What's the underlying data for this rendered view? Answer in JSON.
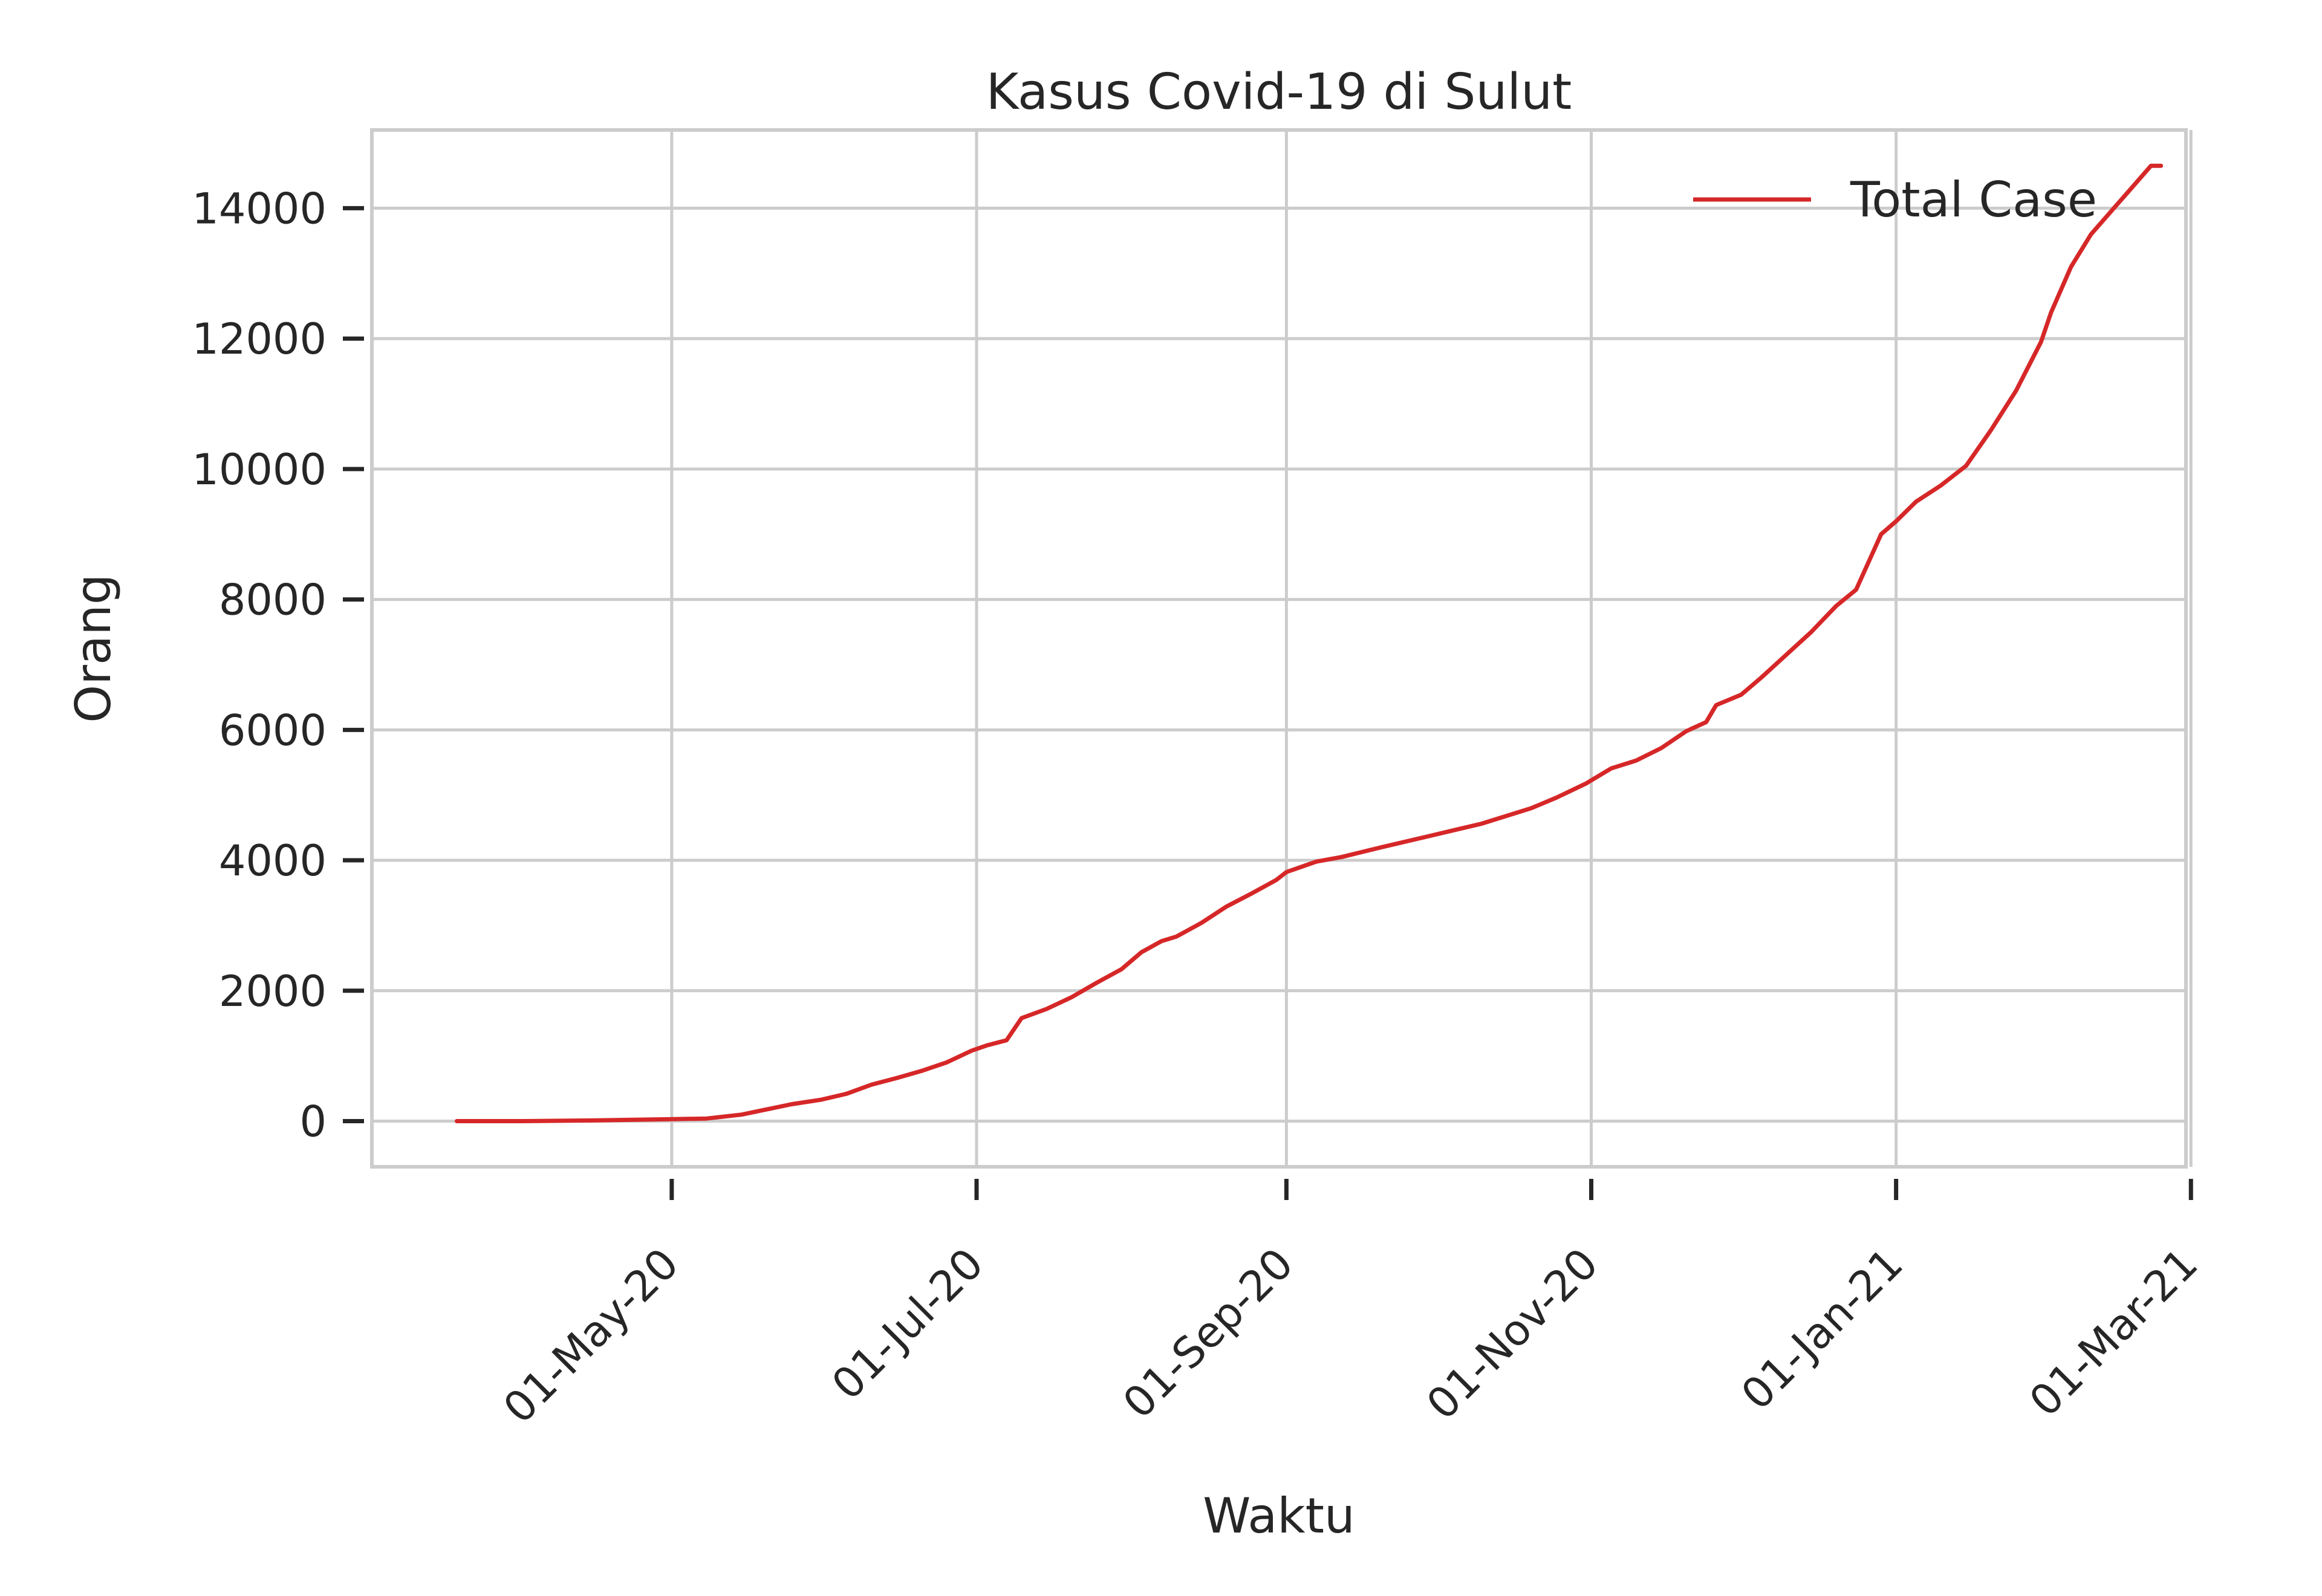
{
  "chart_data": {
    "type": "line",
    "title": "Kasus Covid-19 di Sulut",
    "xlabel": "Waktu",
    "ylabel": "Orang",
    "xlim": [
      "2020-03-02",
      "2021-02-28"
    ],
    "ylim": [
      -700,
      15200
    ],
    "x_ticks": [
      "2020-05-01",
      "2020-07-01",
      "2020-09-01",
      "2020-11-01",
      "2021-01-01",
      "2021-03-01"
    ],
    "x_tick_labels": [
      "01-May-20",
      "01-Jul-20",
      "01-Sep-20",
      "01-Nov-20",
      "01-Jan-21",
      "01-Mar-21"
    ],
    "y_ticks": [
      0,
      2000,
      4000,
      6000,
      8000,
      10000,
      12000,
      14000
    ],
    "y_tick_labels": [
      "0",
      "2000",
      "4000",
      "6000",
      "8000",
      "10000",
      "12000",
      "14000"
    ],
    "grid": true,
    "legend_position": "upper-right",
    "series": [
      {
        "name": "Total Case",
        "color": "#d62728",
        "points": [
          [
            "2020-03-19",
            0
          ],
          [
            "2020-04-01",
            0
          ],
          [
            "2020-04-15",
            10
          ],
          [
            "2020-05-01",
            30
          ],
          [
            "2020-05-08",
            40
          ],
          [
            "2020-05-15",
            100
          ],
          [
            "2020-05-20",
            180
          ],
          [
            "2020-05-25",
            260
          ],
          [
            "2020-05-31",
            330
          ],
          [
            "2020-06-05",
            420
          ],
          [
            "2020-06-10",
            560
          ],
          [
            "2020-06-15",
            660
          ],
          [
            "2020-06-20",
            770
          ],
          [
            "2020-06-25",
            900
          ],
          [
            "2020-06-30",
            1080
          ],
          [
            "2020-07-03",
            1160
          ],
          [
            "2020-07-07",
            1240
          ],
          [
            "2020-07-10",
            1580
          ],
          [
            "2020-07-15",
            1720
          ],
          [
            "2020-07-20",
            1900
          ],
          [
            "2020-07-25",
            2120
          ],
          [
            "2020-07-30",
            2330
          ],
          [
            "2020-08-03",
            2590
          ],
          [
            "2020-08-07",
            2760
          ],
          [
            "2020-08-10",
            2830
          ],
          [
            "2020-08-15",
            3040
          ],
          [
            "2020-08-20",
            3290
          ],
          [
            "2020-08-25",
            3490
          ],
          [
            "2020-08-30",
            3700
          ],
          [
            "2020-09-01",
            3820
          ],
          [
            "2020-09-07",
            3980
          ],
          [
            "2020-09-12",
            4050
          ],
          [
            "2020-09-20",
            4200
          ],
          [
            "2020-09-30",
            4380
          ],
          [
            "2020-10-10",
            4560
          ],
          [
            "2020-10-20",
            4800
          ],
          [
            "2020-10-25",
            4960
          ],
          [
            "2020-10-31",
            5180
          ],
          [
            "2020-11-05",
            5410
          ],
          [
            "2020-11-10",
            5530
          ],
          [
            "2020-11-15",
            5720
          ],
          [
            "2020-11-20",
            5980
          ],
          [
            "2020-11-24",
            6120
          ],
          [
            "2020-11-26",
            6380
          ],
          [
            "2020-12-01",
            6540
          ],
          [
            "2020-12-05",
            6800
          ],
          [
            "2020-12-10",
            7150
          ],
          [
            "2020-12-15",
            7500
          ],
          [
            "2020-12-20",
            7900
          ],
          [
            "2020-12-24",
            8150
          ],
          [
            "2020-12-29",
            9000
          ],
          [
            "2021-01-01",
            9200
          ],
          [
            "2021-01-05",
            9500
          ],
          [
            "2021-01-10",
            9750
          ],
          [
            "2021-01-15",
            10050
          ],
          [
            "2021-01-20",
            10600
          ],
          [
            "2021-01-25",
            11200
          ],
          [
            "2021-01-30",
            11950
          ],
          [
            "2021-02-01",
            12400
          ],
          [
            "2021-02-05",
            13100
          ],
          [
            "2021-02-09",
            13600
          ],
          [
            "2021-02-13",
            13950
          ],
          [
            "2021-02-17",
            14300
          ],
          [
            "2021-02-21",
            14650
          ],
          [
            "2021-02-23",
            14650
          ]
        ]
      }
    ]
  }
}
